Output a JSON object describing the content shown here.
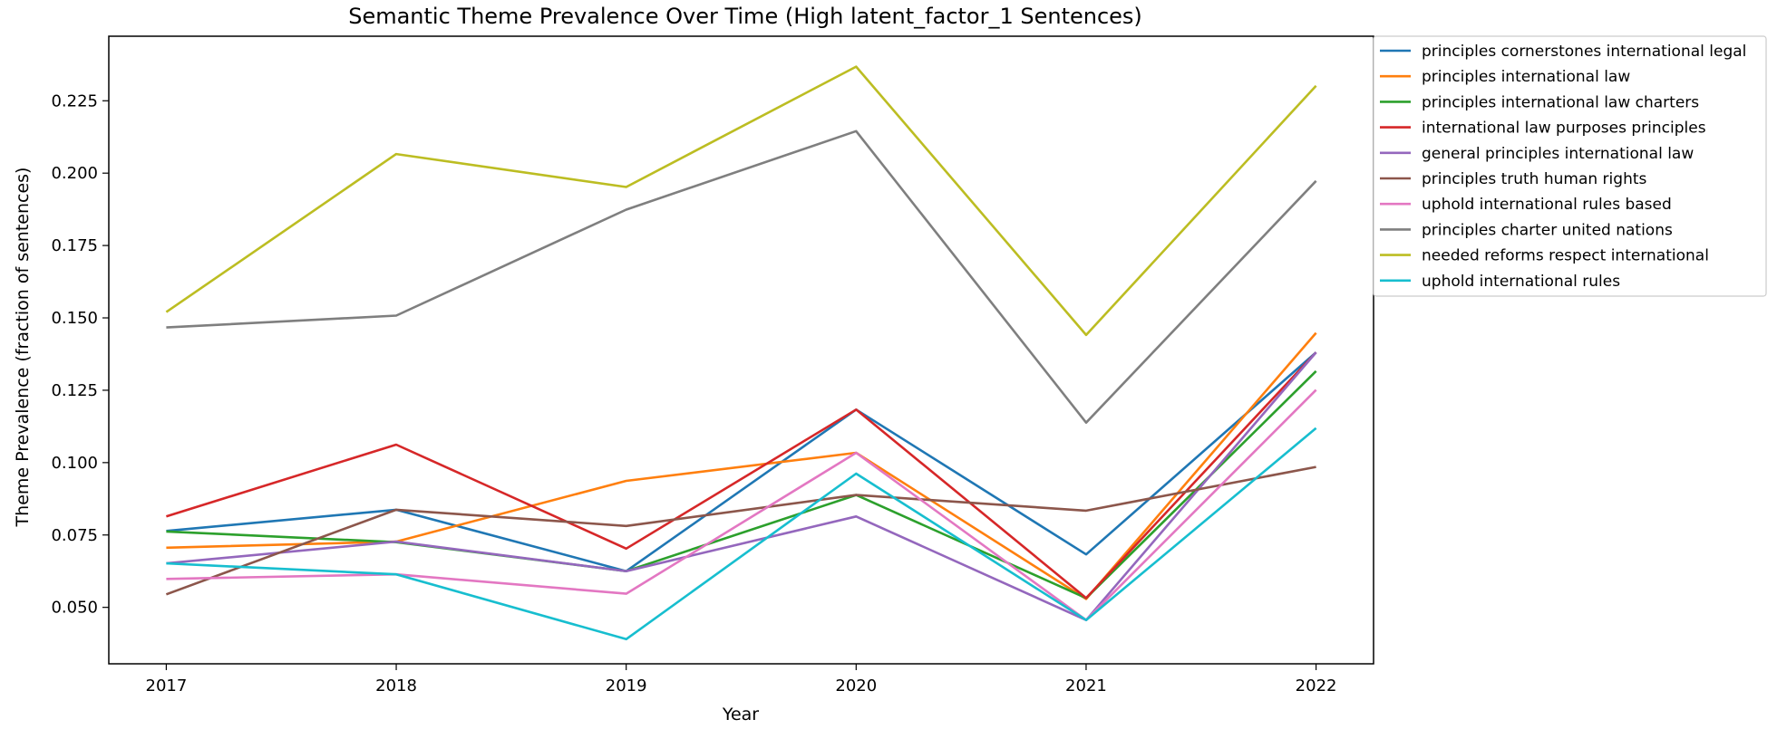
{
  "chart_data": {
    "type": "line",
    "title": "Semantic Theme Prevalence Over Time (High latent_factor_1 Sentences)",
    "xlabel": "Year",
    "ylabel": "Theme Prevalence (fraction of sentences)",
    "x": [
      "2017",
      "2018",
      "2019",
      "2020",
      "2021",
      "2022"
    ],
    "xlim": [
      2016.75,
      2022.25
    ],
    "ylim": [
      0.0305,
      0.2473
    ],
    "yticks": [
      "0.050",
      "0.075",
      "0.100",
      "0.125",
      "0.150",
      "0.175",
      "0.200",
      "0.225"
    ],
    "grid": false,
    "legend_position": "upper-right-outside",
    "series": [
      {
        "name": "principles cornerstones international legal",
        "color": "#1f77b4",
        "values": [
          0.0764,
          0.0837,
          0.0625,
          0.1183,
          0.0683,
          0.1381
        ]
      },
      {
        "name": "principles international law",
        "color": "#ff7f0e",
        "values": [
          0.0706,
          0.0727,
          0.0937,
          0.1034,
          0.0529,
          0.1448
        ]
      },
      {
        "name": "principles international law charters",
        "color": "#2ca02c",
        "values": [
          0.0762,
          0.0725,
          0.0625,
          0.0888,
          0.0532,
          0.1316
        ]
      },
      {
        "name": "international law purposes principles",
        "color": "#d62728",
        "values": [
          0.0814,
          0.1062,
          0.0703,
          0.1183,
          0.0532,
          0.1381
        ]
      },
      {
        "name": "general principles international law",
        "color": "#9467bd",
        "values": [
          0.0652,
          0.0727,
          0.0625,
          0.0814,
          0.0456,
          0.1381
        ]
      },
      {
        "name": "principles truth human rights",
        "color": "#8c564b",
        "values": [
          0.0545,
          0.0837,
          0.0781,
          0.0888,
          0.0834,
          0.0985
        ]
      },
      {
        "name": "uphold international rules based",
        "color": "#e377c2",
        "values": [
          0.0598,
          0.0614,
          0.0547,
          0.1034,
          0.0456,
          0.1251
        ]
      },
      {
        "name": "principles charter united nations",
        "color": "#7f7f7f",
        "values": [
          0.1467,
          0.1508,
          0.1874,
          0.2145,
          0.1138,
          0.1973
        ]
      },
      {
        "name": "needed reforms respect international",
        "color": "#bcbd22",
        "values": [
          0.152,
          0.2066,
          0.1952,
          0.2368,
          0.1441,
          0.2302
        ]
      },
      {
        "name": "uphold international rules",
        "color": "#17becf",
        "values": [
          0.0652,
          0.0614,
          0.039,
          0.0962,
          0.0456,
          0.1119
        ]
      }
    ]
  }
}
